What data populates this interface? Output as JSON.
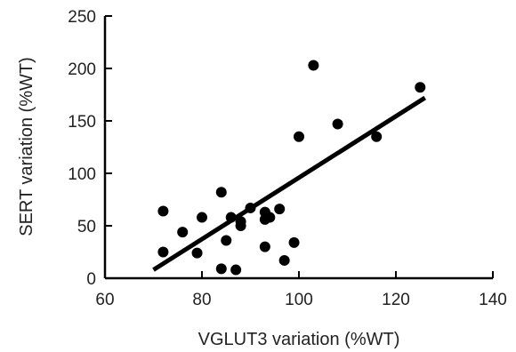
{
  "chart_data": {
    "type": "scatter",
    "xlabel": "VGLUT3 variation (%WT)",
    "ylabel": "SERT variation (%WT)",
    "xlim": [
      60,
      140
    ],
    "ylim": [
      0,
      250
    ],
    "xticks": [
      60,
      80,
      100,
      120,
      140
    ],
    "yticks": [
      0,
      50,
      100,
      150,
      200,
      250
    ],
    "grid": false,
    "legend": "none",
    "points": [
      {
        "x": 72,
        "y": 64
      },
      {
        "x": 72,
        "y": 25
      },
      {
        "x": 76,
        "y": 44
      },
      {
        "x": 79,
        "y": 24
      },
      {
        "x": 80,
        "y": 58
      },
      {
        "x": 84,
        "y": 82
      },
      {
        "x": 84,
        "y": 9
      },
      {
        "x": 85,
        "y": 36
      },
      {
        "x": 86,
        "y": 58
      },
      {
        "x": 87,
        "y": 8
      },
      {
        "x": 88,
        "y": 50
      },
      {
        "x": 88,
        "y": 54
      },
      {
        "x": 90,
        "y": 67
      },
      {
        "x": 93,
        "y": 63
      },
      {
        "x": 93,
        "y": 30
      },
      {
        "x": 93,
        "y": 56
      },
      {
        "x": 94,
        "y": 58
      },
      {
        "x": 96,
        "y": 66
      },
      {
        "x": 97,
        "y": 17
      },
      {
        "x": 99,
        "y": 34
      },
      {
        "x": 100,
        "y": 135
      },
      {
        "x": 103,
        "y": 203
      },
      {
        "x": 108,
        "y": 147
      },
      {
        "x": 116,
        "y": 135
      },
      {
        "x": 125,
        "y": 182
      }
    ],
    "trendline": {
      "x": [
        70,
        126
      ],
      "y": [
        8,
        172
      ]
    },
    "colors": {
      "points": "#000000",
      "trendline": "#000000",
      "axes": "#000000"
    }
  }
}
